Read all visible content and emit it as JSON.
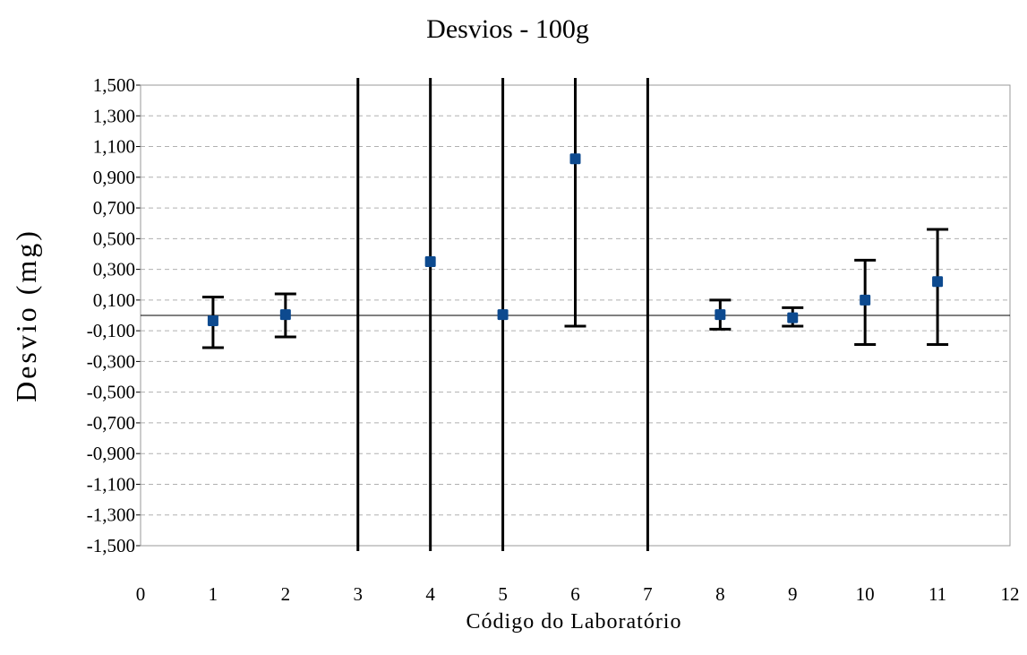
{
  "chart_data": {
    "type": "scatter",
    "title": "Desvios - 100g",
    "xlabel": "Código do Laboratório",
    "ylabel": "Desvio (mg)",
    "xlim": [
      0,
      12
    ],
    "ylim": [
      -1.5,
      1.5
    ],
    "x_ticks": [
      0,
      1,
      2,
      3,
      4,
      5,
      6,
      7,
      8,
      9,
      10,
      11,
      12
    ],
    "y_ticks": [
      1.5,
      1.3,
      1.1,
      0.9,
      0.7,
      0.5,
      0.3,
      0.1,
      -0.1,
      -0.3,
      -0.5,
      -0.7,
      -0.9,
      -1.1,
      -1.3,
      -1.5
    ],
    "y_tick_labels": [
      "1,500",
      "1,300",
      "1,100",
      "0,900",
      "0,700",
      "0,500",
      "0,300",
      "0,100",
      "-0,100",
      "-0,300",
      "-0,500",
      "-0,700",
      "-0,900",
      "-1,100",
      "-1,300",
      "-1,500"
    ],
    "grid": "horizontal-dashed",
    "marker_color": "#0d4a8f",
    "points": [
      {
        "x": 1,
        "y": -0.035,
        "err_low": -0.21,
        "err_high": 0.12
      },
      {
        "x": 2,
        "y": 0.005,
        "err_low": -0.14,
        "err_high": 0.14
      },
      {
        "x": 4,
        "y": 0.35,
        "err_low": -1.5,
        "err_high": 1.5
      },
      {
        "x": 5,
        "y": 0.005,
        "err_low": -1.5,
        "err_high": 1.5
      },
      {
        "x": 6,
        "y": 1.02,
        "err_low": -0.07,
        "err_high": 1.5
      },
      {
        "x": 8,
        "y": 0.005,
        "err_low": -0.09,
        "err_high": 0.1
      },
      {
        "x": 9,
        "y": -0.015,
        "err_low": -0.07,
        "err_high": 0.05
      },
      {
        "x": 10,
        "y": 0.1,
        "err_low": -0.19,
        "err_high": 0.36
      },
      {
        "x": 11,
        "y": 0.22,
        "err_low": -0.19,
        "err_high": 0.56
      }
    ],
    "full_height_lines_x": [
      3,
      7
    ]
  }
}
